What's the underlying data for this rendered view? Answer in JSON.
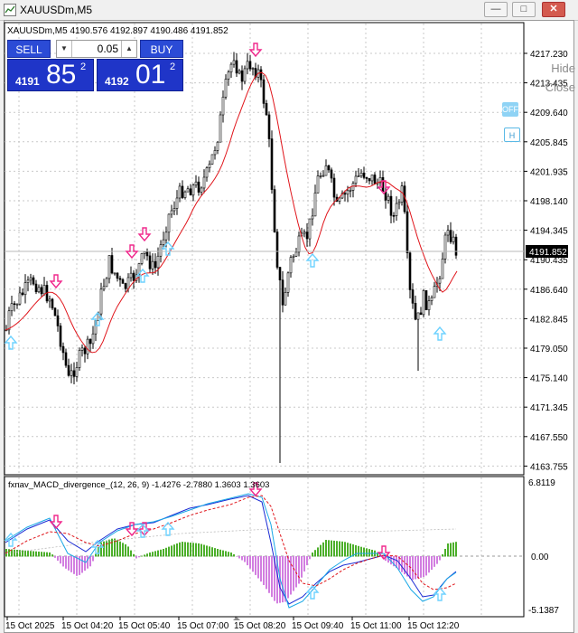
{
  "window": {
    "title": "XAUUSDm,M5",
    "minimize": "—",
    "maximize": "□",
    "close": "✕"
  },
  "chart": {
    "info": "XAUUSDm,M5  4190.576 4192.897 4190.486 4191.852",
    "current_price": "4191.852",
    "colors": {
      "bull": "#000000",
      "ma": "#e0151b",
      "buy_arrow": "#6ed2ff",
      "sell_arrow": "#f0288c",
      "price_tag": "#000000"
    }
  },
  "trade_panel": {
    "sell_label": "SELL",
    "buy_label": "BUY",
    "lot": "0.05",
    "sell_price_prefix": "4191",
    "sell_price_big": "85",
    "sell_price_sup": "2",
    "buy_price_prefix": "4192",
    "buy_price_big": "01",
    "buy_price_sup": "2"
  },
  "side_controls": {
    "hide": "Hide",
    "close": "Close",
    "off": "OFF",
    "h": "H"
  },
  "price_axis": [
    "4217.230",
    "4213.435",
    "4209.640",
    "4205.845",
    "4201.935",
    "4198.140",
    "4194.345",
    "4190.435",
    "4186.640",
    "4182.845",
    "4179.050",
    "4175.140",
    "4171.345",
    "4167.550",
    "4163.755"
  ],
  "indicator": {
    "label": "fxnav_MACD_divergence_(12, 26, 9)  -1.4276 -2.7880 1.3603 1.3603",
    "axis": [
      "6.8119",
      "0.00",
      "-5.1387"
    ]
  },
  "time_axis": [
    "15 Oct 2025",
    "15 Oct 04:20",
    "15 Oct 05:40",
    "15 Oct 07:00",
    "15 Oct 08:20",
    "15 Oct 09:40",
    "15 Oct 11:00",
    "15 Oct 12:20"
  ]
}
